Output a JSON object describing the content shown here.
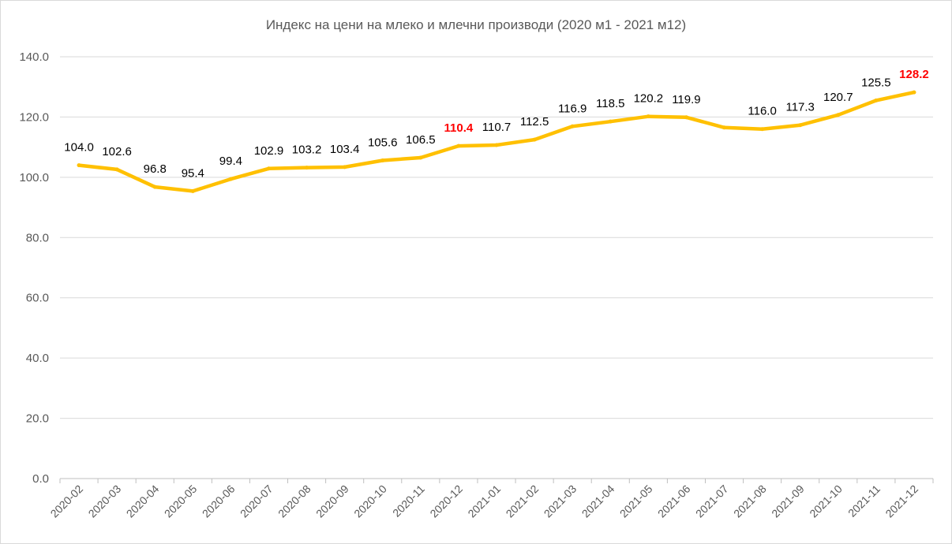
{
  "chart_data": {
    "type": "line",
    "title": "Индекс на цени на млеко и млечни производи  (2020 м1 - 2021 м12)",
    "xlabel": "",
    "ylabel": "",
    "categories": [
      "2020-02",
      "2020-03",
      "2020-04",
      "2020-05",
      "2020-06",
      "2020-07",
      "2020-08",
      "2020-09",
      "2020-10",
      "2020-11",
      "2020-12",
      "2021-01",
      "2021-02",
      "2021-03",
      "2021-04",
      "2021-05",
      "2021-06",
      "2021-07",
      "2021-08",
      "2021-09",
      "2021-10",
      "2021-11",
      "2021-12"
    ],
    "series": [
      {
        "values": [
          104.0,
          102.6,
          96.8,
          95.4,
          99.4,
          102.9,
          103.2,
          103.4,
          105.6,
          106.5,
          110.4,
          110.7,
          112.5,
          116.9,
          118.5,
          120.2,
          119.9,
          116.5,
          116.0,
          117.3,
          120.7,
          125.5,
          128.2
        ],
        "data_labels": [
          "104.0",
          "102.6",
          "96.8",
          "95.4",
          "99.4",
          "102.9",
          "103.2",
          "103.4",
          "105.6",
          "106.5",
          "110.4",
          "110.7",
          "112.5",
          "116.9",
          "118.5",
          "120.2",
          "119.9",
          "",
          "116.0",
          "117.3",
          "120.7",
          "125.5",
          "128.2"
        ],
        "highlighted_labels": [
          "110.4",
          "128.2"
        ],
        "color": "#ffc000"
      }
    ],
    "y_ticks": [
      "0.0",
      "20.0",
      "40.0",
      "60.0",
      "80.0",
      "100.0",
      "120.0",
      "140.0"
    ],
    "ylim": [
      0,
      140
    ],
    "grid": true,
    "legend": "none",
    "highlight_color": "#ff0000"
  }
}
